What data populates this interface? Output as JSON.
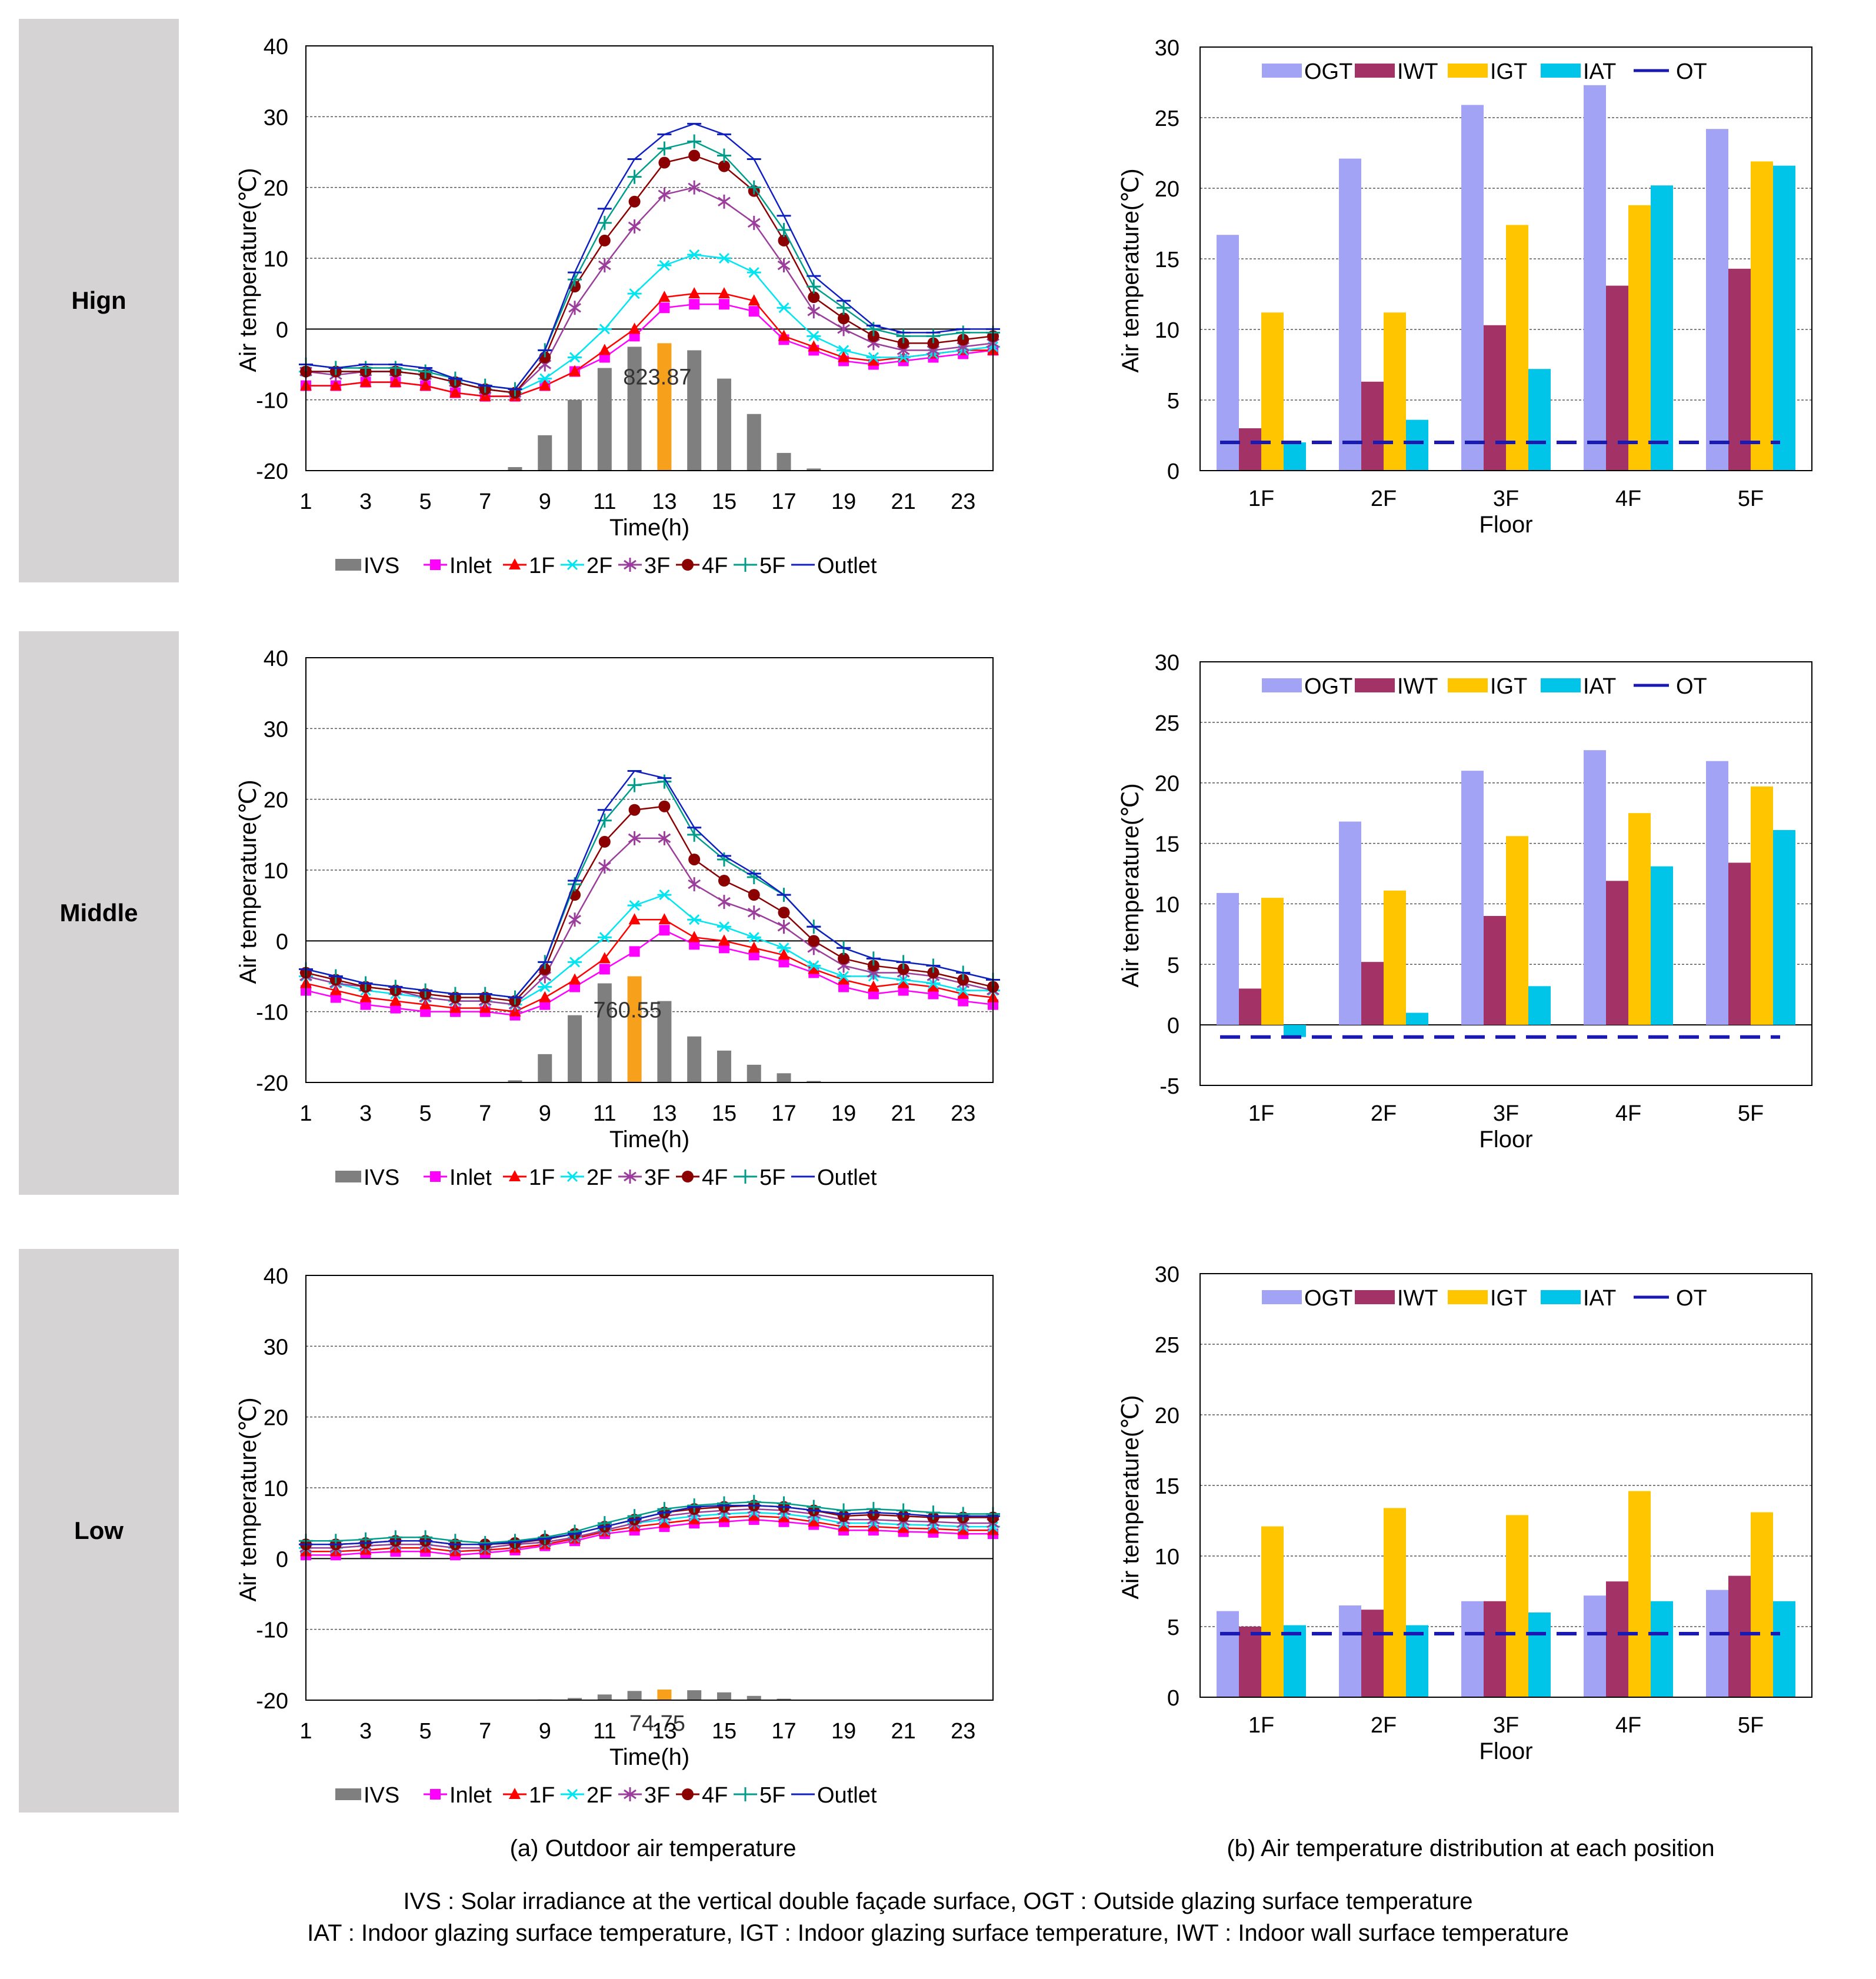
{
  "rows": [
    {
      "label": "Hign"
    },
    {
      "label": "Middle"
    },
    {
      "label": "Low"
    }
  ],
  "captions": {
    "a": "(a) Outdoor air temperature",
    "b": "(b) Air temperature distribution at each position"
  },
  "footnote": {
    "line1": "IVS : Solar irradiance at the vertical double façade surface, OGT : Outside glazing surface temperature",
    "line2": "IAT : Indoor glazing surface temperature, IGT : Indoor glazing surface temperature, IWT : Indoor wall surface temperature"
  },
  "colors": {
    "IVS": "#7f7f7f",
    "IVS_peak": "#f7a01c",
    "Inlet": "#ff00ff",
    "1F": "#ff0000",
    "2F": "#00e5f0",
    "3F": "#9b3d9b",
    "4F": "#8b0000",
    "5F": "#009e8a",
    "Outlet": "#1020c0",
    "OGT": "#a3a3f5",
    "IWT": "#a33266",
    "IGT": "#ffc600",
    "IAT": "#00c5e8",
    "OT": "#1a1ab3"
  },
  "chart_data": [
    {
      "type": "line",
      "id": "high-line",
      "xlabel": "Time(h)",
      "ylabel": "Air temperature(℃)",
      "ylim": [
        -20,
        40
      ],
      "yticks": [
        "40",
        "30",
        "20",
        "10",
        "0",
        "-10",
        "-20"
      ],
      "xticks": [
        "1",
        "3",
        "5",
        "7",
        "9",
        "11",
        "13",
        "15",
        "17",
        "19",
        "21",
        "23"
      ],
      "x": [
        1,
        2,
        3,
        4,
        5,
        6,
        7,
        8,
        9,
        10,
        11,
        12,
        13,
        14,
        15,
        16,
        17,
        18,
        19,
        20,
        21,
        22,
        23,
        24
      ],
      "bar_series": {
        "name": "IVS",
        "peak_index": 12,
        "peak_label": "823.87",
        "values": [
          0,
          0,
          0,
          0,
          0,
          0,
          0,
          0.5,
          5,
          10,
          14.5,
          17.5,
          18,
          17,
          13,
          8,
          2.5,
          0.3,
          0,
          0,
          0,
          0,
          0,
          0
        ]
      },
      "series": [
        {
          "name": "Inlet",
          "values": [
            -8,
            -8,
            -7.5,
            -7.5,
            -8,
            -9,
            -9.5,
            -9.5,
            -8,
            -6,
            -4,
            -1,
            3,
            3.5,
            3.5,
            2.5,
            -1.5,
            -3,
            -4.5,
            -5,
            -4.5,
            -4,
            -3.5,
            -3
          ]
        },
        {
          "name": "1F",
          "values": [
            -8,
            -8,
            -7.5,
            -7.5,
            -8,
            -9,
            -9.5,
            -9.5,
            -8,
            -6,
            -3,
            0,
            4.5,
            5,
            5,
            4,
            -1,
            -2.5,
            -4,
            -4.5,
            -4,
            -3.5,
            -3,
            -3
          ]
        },
        {
          "name": "2F",
          "values": [
            -6,
            -6,
            -6,
            -6,
            -6.5,
            -7.5,
            -8.5,
            -9,
            -7,
            -4,
            0,
            5,
            9,
            10.5,
            10,
            8,
            3,
            -1,
            -3,
            -4,
            -4,
            -3.5,
            -3,
            -2.5
          ]
        },
        {
          "name": "3F",
          "values": [
            -6,
            -6.5,
            -6,
            -6,
            -6.5,
            -7.5,
            -8.5,
            -9,
            -5,
            3,
            9,
            14.5,
            19,
            20,
            18,
            15,
            9,
            2.5,
            0,
            -2,
            -3,
            -3,
            -2.5,
            -2
          ]
        },
        {
          "name": "4F",
          "values": [
            -6,
            -6,
            -6,
            -6,
            -6.5,
            -7.5,
            -8.5,
            -9,
            -4,
            6,
            12.5,
            18,
            23.5,
            24.5,
            23,
            19.5,
            12.5,
            4.5,
            1.5,
            -1,
            -2,
            -2,
            -1.5,
            -1
          ]
        },
        {
          "name": "5F",
          "values": [
            -5,
            -5.5,
            -5.5,
            -5.5,
            -6,
            -7,
            -8,
            -8.5,
            -3,
            7,
            15,
            21.5,
            25.5,
            26.5,
            24.5,
            20,
            14,
            6,
            3,
            0,
            -1,
            -1,
            -0.5,
            -0.5
          ]
        },
        {
          "name": "Outlet",
          "values": [
            -5,
            -5.5,
            -5,
            -5,
            -5.5,
            -7,
            -8,
            -8.5,
            -3,
            8,
            17,
            24,
            27.5,
            29,
            27.5,
            24,
            16,
            7.5,
            4,
            0.5,
            -0.5,
            -0.5,
            0,
            0
          ]
        }
      ]
    },
    {
      "type": "bar",
      "id": "high-bar",
      "xlabel": "Floor",
      "ylabel": "Air temperature(℃)",
      "ylim": [
        0,
        30
      ],
      "yticks": [
        "30",
        "25",
        "20",
        "15",
        "10",
        "5",
        "0"
      ],
      "categories": [
        "1F",
        "2F",
        "3F",
        "4F",
        "5F"
      ],
      "series": [
        {
          "name": "OGT",
          "values": [
            16.7,
            22.1,
            25.9,
            27.3,
            24.2
          ]
        },
        {
          "name": "IWT",
          "values": [
            3.0,
            6.3,
            10.3,
            13.1,
            14.3
          ]
        },
        {
          "name": "IGT",
          "values": [
            11.2,
            11.2,
            17.4,
            18.8,
            21.9
          ]
        },
        {
          "name": "IAT",
          "values": [
            2.0,
            3.6,
            7.2,
            20.2,
            21.6
          ]
        }
      ],
      "line": {
        "name": "OT",
        "value": 2.0
      }
    },
    {
      "type": "line",
      "id": "middle-line",
      "xlabel": "Time(h)",
      "ylabel": "Air temperature(℃)",
      "ylim": [
        -20,
        40
      ],
      "yticks": [
        "40",
        "30",
        "20",
        "10",
        "0",
        "-10",
        "-20"
      ],
      "xticks": [
        "1",
        "3",
        "5",
        "7",
        "9",
        "11",
        "13",
        "15",
        "17",
        "19",
        "21",
        "23"
      ],
      "x": [
        1,
        2,
        3,
        4,
        5,
        6,
        7,
        8,
        9,
        10,
        11,
        12,
        13,
        14,
        15,
        16,
        17,
        18,
        19,
        20,
        21,
        22,
        23,
        24
      ],
      "bar_series": {
        "name": "IVS",
        "peak_index": 11,
        "peak_label": "760.55",
        "values": [
          0,
          0,
          0,
          0,
          0,
          0,
          0,
          0.3,
          4,
          9.5,
          14,
          15,
          11.5,
          6.5,
          4.5,
          2.5,
          1.3,
          0.2,
          0,
          0,
          0,
          0,
          0,
          0
        ]
      },
      "series": [
        {
          "name": "Inlet",
          "values": [
            -7,
            -8,
            -9,
            -9.5,
            -10,
            -10,
            -10,
            -10.5,
            -9,
            -6.5,
            -4,
            -1.5,
            1.5,
            -0.5,
            -1,
            -2,
            -3,
            -4.5,
            -6.5,
            -7.5,
            -7,
            -7.5,
            -8.5,
            -9
          ]
        },
        {
          "name": "1F",
          "values": [
            -6,
            -7,
            -8,
            -8.5,
            -9,
            -9.5,
            -9.5,
            -10,
            -8,
            -5.5,
            -2.5,
            3,
            3,
            0.5,
            0,
            -1,
            -2,
            -4,
            -5.5,
            -6.5,
            -6,
            -6.5,
            -7.5,
            -8
          ]
        },
        {
          "name": "2F",
          "values": [
            -5,
            -6,
            -7,
            -7.5,
            -8,
            -8.5,
            -8.5,
            -9,
            -6.5,
            -3,
            0.5,
            5,
            6.5,
            3,
            2,
            0.5,
            -1,
            -3.5,
            -5,
            -5,
            -5.5,
            -6,
            -7,
            -7
          ]
        },
        {
          "name": "3F",
          "values": [
            -5,
            -6,
            -6.5,
            -7,
            -8,
            -8.5,
            -8.5,
            -9,
            -5,
            3,
            10.5,
            14.5,
            14.5,
            8,
            5.5,
            4,
            2,
            -1,
            -3.5,
            -4.5,
            -4.5,
            -5,
            -6,
            -7
          ]
        },
        {
          "name": "4F",
          "values": [
            -4.5,
            -5.5,
            -6.5,
            -7,
            -7.5,
            -8,
            -8,
            -8.5,
            -4,
            6.5,
            14,
            18.5,
            19,
            11.5,
            8.5,
            6.5,
            4,
            0,
            -2.5,
            -3.5,
            -4,
            -4.5,
            -5.5,
            -6.5
          ]
        },
        {
          "name": "5F",
          "values": [
            -4,
            -5,
            -6,
            -6.5,
            -7,
            -7.5,
            -7.5,
            -8,
            -3,
            8,
            17,
            22,
            22.5,
            15,
            11.5,
            9,
            6.5,
            2,
            -1,
            -2.5,
            -3,
            -3.5,
            -4.5,
            -5.5
          ]
        },
        {
          "name": "Outlet",
          "values": [
            -4,
            -5,
            -6,
            -6.5,
            -7,
            -7.5,
            -7.5,
            -8,
            -3,
            8.5,
            18.5,
            24,
            23,
            16,
            12,
            9.5,
            6.5,
            2,
            -1,
            -2.5,
            -3,
            -3.5,
            -4.5,
            -5.5
          ]
        }
      ]
    },
    {
      "type": "bar",
      "id": "middle-bar",
      "xlabel": "Floor",
      "ylabel": "Air temperature(℃)",
      "ylim": [
        -5,
        30
      ],
      "yticks": [
        "30",
        "25",
        "20",
        "15",
        "10",
        "5",
        "0",
        "-5"
      ],
      "categories": [
        "1F",
        "2F",
        "3F",
        "4F",
        "5F"
      ],
      "series": [
        {
          "name": "OGT",
          "values": [
            10.9,
            16.8,
            21.0,
            22.7,
            21.8
          ]
        },
        {
          "name": "IWT",
          "values": [
            3.0,
            5.2,
            9.0,
            11.9,
            13.4
          ]
        },
        {
          "name": "IGT",
          "values": [
            10.5,
            11.1,
            15.6,
            17.5,
            19.7
          ]
        },
        {
          "name": "IAT",
          "values": [
            -1.0,
            1.0,
            3.2,
            13.1,
            16.1
          ]
        }
      ],
      "line": {
        "name": "OT",
        "value": -1.0
      }
    },
    {
      "type": "line",
      "id": "low-line",
      "xlabel": "Time(h)",
      "ylabel": "Air temperature(℃)",
      "ylim": [
        -20,
        40
      ],
      "yticks": [
        "40",
        "30",
        "20",
        "10",
        "0",
        "-10",
        "-20"
      ],
      "xticks": [
        "1",
        "3",
        "5",
        "7",
        "9",
        "11",
        "13",
        "15",
        "17",
        "19",
        "21",
        "23"
      ],
      "x": [
        1,
        2,
        3,
        4,
        5,
        6,
        7,
        8,
        9,
        10,
        11,
        12,
        13,
        14,
        15,
        16,
        17,
        18,
        19,
        20,
        21,
        22,
        23,
        24
      ],
      "bar_series": {
        "name": "IVS",
        "peak_index": 12,
        "peak_label": "74.75",
        "values": [
          0,
          0,
          0,
          0,
          0,
          0,
          0,
          0,
          0.1,
          0.3,
          0.8,
          1.3,
          1.5,
          1.4,
          1.1,
          0.6,
          0.2,
          0,
          0,
          0,
          0,
          0,
          0,
          0
        ]
      },
      "series": [
        {
          "name": "Inlet",
          "values": [
            0.5,
            0.5,
            0.8,
            1,
            1,
            0.5,
            0.8,
            1.2,
            1.8,
            2.5,
            3.5,
            4,
            4.5,
            5,
            5.2,
            5.5,
            5.2,
            4.8,
            4,
            4,
            3.8,
            3.7,
            3.5,
            3.5
          ]
        },
        {
          "name": "1F",
          "values": [
            1,
            1,
            1.2,
            1.5,
            1.5,
            1,
            1.2,
            1.5,
            2,
            2.8,
            3.8,
            4.5,
            5,
            5.5,
            5.8,
            6,
            5.8,
            5.2,
            4.5,
            4.5,
            4.3,
            4.2,
            4,
            4
          ]
        },
        {
          "name": "2F",
          "values": [
            1.5,
            1.5,
            1.8,
            2,
            2,
            1.5,
            1.5,
            2,
            2.3,
            3,
            4,
            5,
            5.5,
            6,
            6.3,
            6.5,
            6.3,
            5.8,
            5,
            5,
            4.8,
            4.7,
            4.5,
            4.5
          ]
        },
        {
          "name": "3F",
          "values": [
            1.5,
            1.5,
            1.8,
            2,
            2,
            1.5,
            1.5,
            2,
            2.3,
            3,
            4,
            5,
            6,
            6.5,
            6.8,
            7,
            6.8,
            6.3,
            5.5,
            5.5,
            5.3,
            5.2,
            5,
            5
          ]
        },
        {
          "name": "4F",
          "values": [
            2,
            2,
            2.2,
            2.5,
            2.5,
            2,
            2,
            2.2,
            2.7,
            3.5,
            4.5,
            5.5,
            6.5,
            7,
            7.3,
            7.5,
            7.3,
            6.8,
            6,
            6.2,
            6,
            5.8,
            5.8,
            5.8
          ]
        },
        {
          "name": "5F",
          "values": [
            2.5,
            2.5,
            2.7,
            3,
            3,
            2.5,
            2.2,
            2.5,
            3,
            3.8,
            5,
            6,
            7,
            7.5,
            7.8,
            8,
            7.8,
            7.3,
            6.8,
            7,
            6.8,
            6.5,
            6.3,
            6.3
          ]
        },
        {
          "name": "Outlet",
          "values": [
            2,
            2,
            2.2,
            2.5,
            2.5,
            2,
            2,
            2.3,
            2.8,
            3.5,
            4.5,
            5.5,
            6.5,
            7.3,
            7.5,
            7.5,
            7.3,
            6.8,
            6.3,
            6.5,
            6.3,
            6,
            6,
            6
          ]
        }
      ]
    },
    {
      "type": "bar",
      "id": "low-bar",
      "xlabel": "Floor",
      "ylabel": "Air temperature(℃)",
      "ylim": [
        0,
        30
      ],
      "yticks": [
        "30",
        "25",
        "20",
        "15",
        "10",
        "5",
        "0"
      ],
      "categories": [
        "1F",
        "2F",
        "3F",
        "4F",
        "5F"
      ],
      "series": [
        {
          "name": "OGT",
          "values": [
            6.1,
            6.5,
            6.8,
            7.2,
            7.6
          ]
        },
        {
          "name": "IWT",
          "values": [
            5.0,
            6.2,
            6.8,
            8.2,
            8.6
          ]
        },
        {
          "name": "IGT",
          "values": [
            12.1,
            13.4,
            12.9,
            14.6,
            13.1
          ]
        },
        {
          "name": "IAT",
          "values": [
            5.1,
            5.1,
            6.0,
            6.8,
            6.8
          ]
        }
      ],
      "line": {
        "name": "OT",
        "value": 4.5
      }
    }
  ]
}
